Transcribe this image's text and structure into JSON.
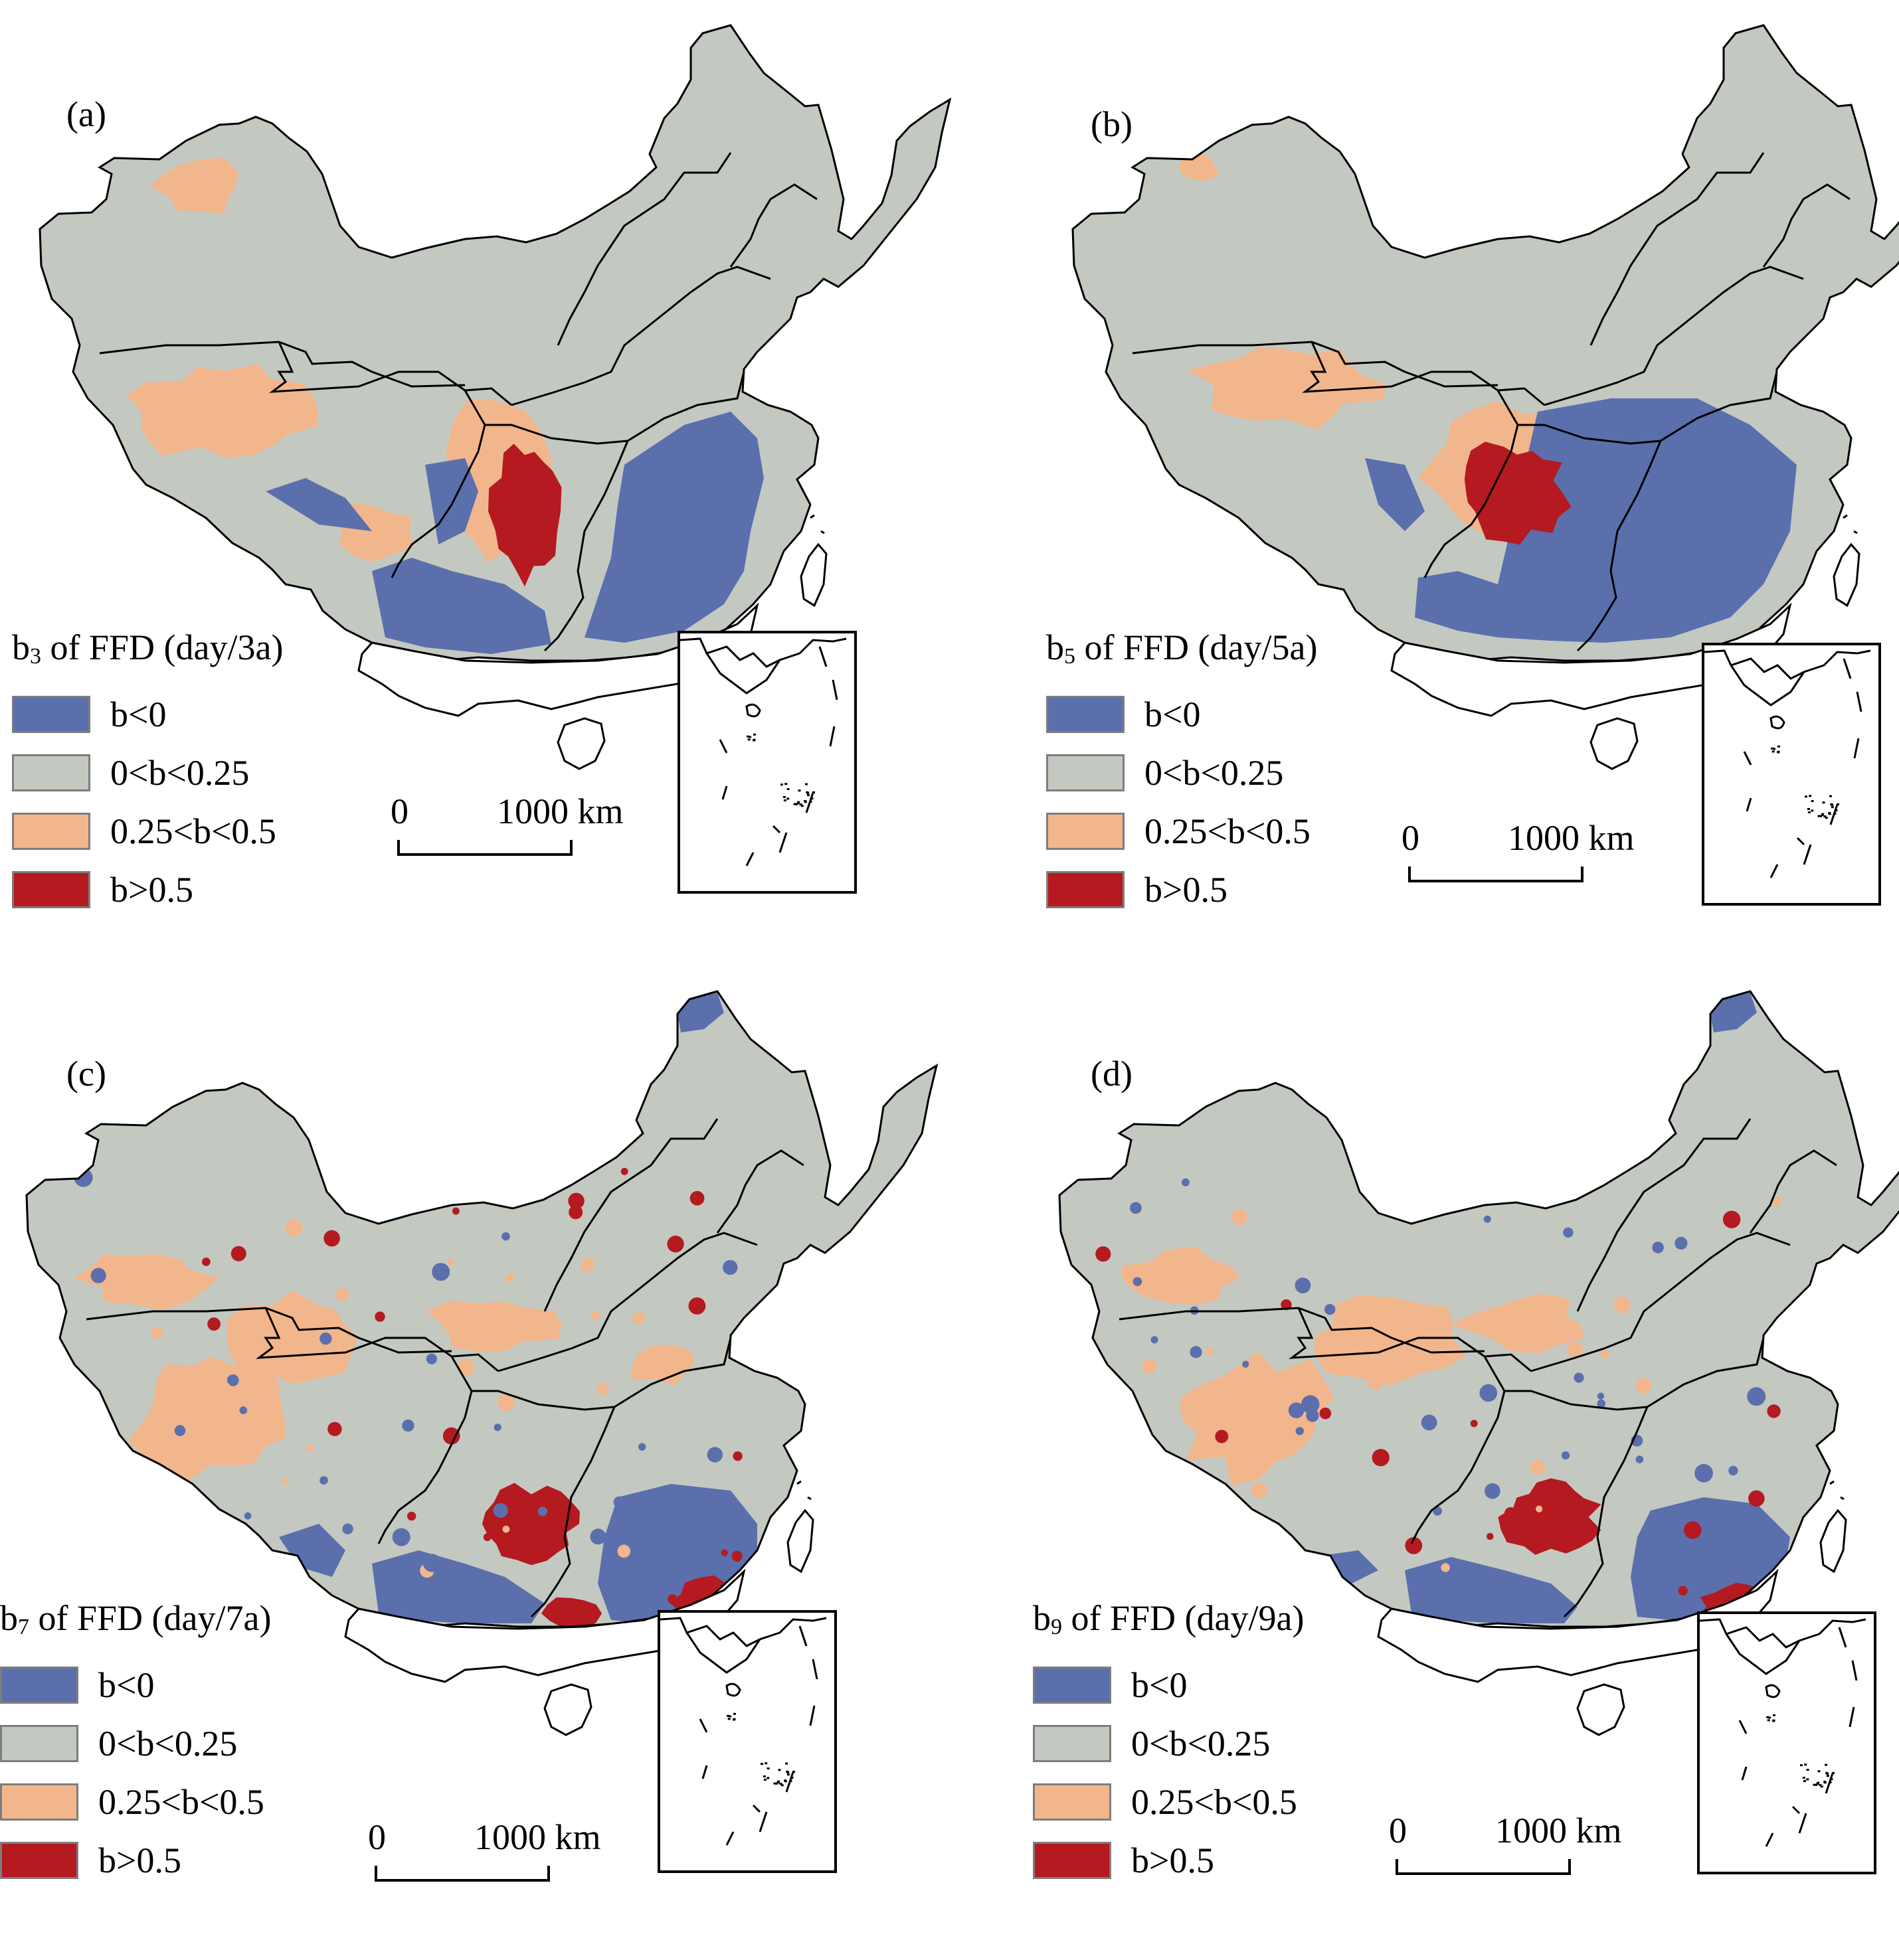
{
  "colors": {
    "b_lt_0": "#5b6fad",
    "b_0_025": "#c3c9c1",
    "b_025_05": "#f2b68d",
    "b_gt_05": "#b41a1f",
    "outline": "#000000"
  },
  "legend": {
    "items": [
      {
        "key": "b_lt_0",
        "label": "b<0"
      },
      {
        "key": "b_0_025",
        "label": "0<b<0.25"
      },
      {
        "key": "b_025_05",
        "label": "0.25<b<0.5"
      },
      {
        "key": "b_gt_05",
        "label": "b>0.5"
      }
    ]
  },
  "scale": {
    "start": "0",
    "end": "1000 km"
  },
  "panels": [
    {
      "id": "a",
      "label": "(a)",
      "title_main": "b",
      "title_sub": "3",
      "title_rest": " of FFD (day/3a)"
    },
    {
      "id": "b",
      "label": "(b)",
      "title_main": "b",
      "title_sub": "5",
      "title_rest": " of FFD (day/5a)"
    },
    {
      "id": "c",
      "label": "(c)",
      "title_main": "b",
      "title_sub": "7",
      "title_rest": " of FFD (day/7a)"
    },
    {
      "id": "d",
      "label": "(d)",
      "title_main": "b",
      "title_sub": "9",
      "title_rest": " of FFD (day/9a)"
    }
  ]
}
